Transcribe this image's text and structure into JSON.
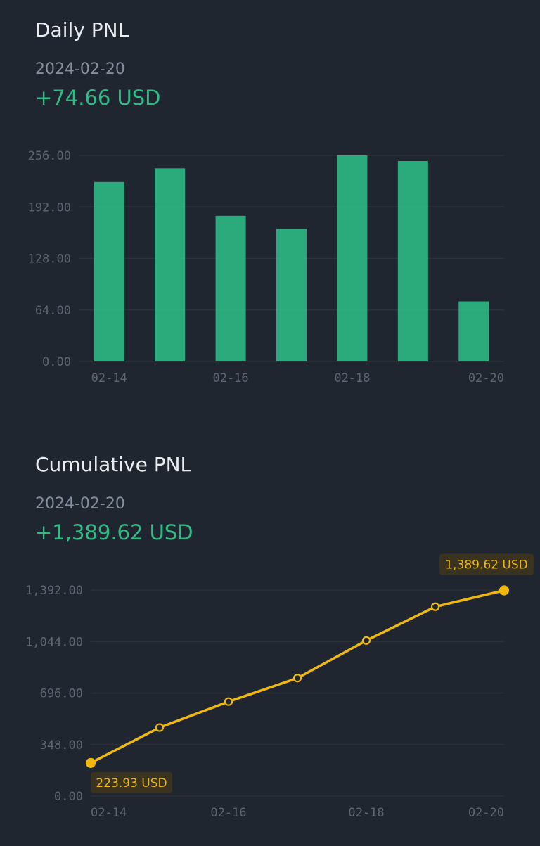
{
  "daily": {
    "title": "Daily PNL",
    "date": "2024-02-20",
    "value": "+74.66 USD"
  },
  "cumulative": {
    "title": "Cumulative PNL",
    "date": "2024-02-20",
    "value": "+1,389.62 USD",
    "start_tag": "223.93 USD",
    "end_tag": "1,389.62 USD"
  },
  "colors": {
    "bar": "#2ebd85",
    "line": "#f0b90b",
    "grid": "#2b3139",
    "positive": "#2ebd85"
  },
  "chart_data": [
    {
      "type": "bar",
      "title": "Daily PNL",
      "categories": [
        "02-14",
        "02-15",
        "02-16",
        "02-17",
        "02-18",
        "02-19",
        "02-20"
      ],
      "values": [
        223,
        240,
        181,
        165,
        256,
        249,
        74.66
      ],
      "x_tick_labels": [
        "02-14",
        "02-16",
        "02-18",
        "02-20"
      ],
      "y_ticks": [
        "0.00",
        "64.00",
        "128.00",
        "192.00",
        "256.00"
      ],
      "ylim": [
        0,
        256
      ],
      "grid": true
    },
    {
      "type": "line",
      "title": "Cumulative PNL",
      "categories": [
        "02-14",
        "02-15",
        "02-16",
        "02-17",
        "02-18",
        "02-19",
        "02-20"
      ],
      "values": [
        223.93,
        463,
        638,
        797,
        1051,
        1279,
        1389.62
      ],
      "x_tick_labels": [
        "02-14",
        "02-16",
        "02-18",
        "02-20"
      ],
      "y_ticks": [
        "0.00",
        "348.00",
        "696.00",
        "1,044.00",
        "1,392.00"
      ],
      "ylim": [
        0,
        1392
      ],
      "grid": true
    }
  ]
}
